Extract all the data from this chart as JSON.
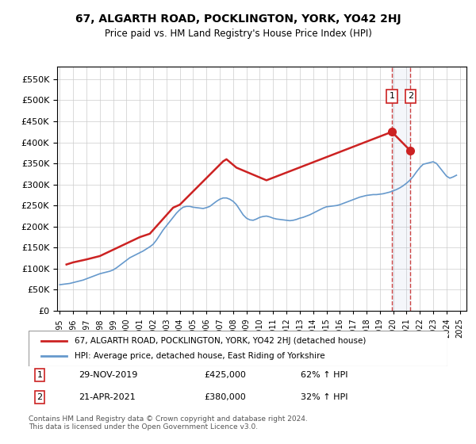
{
  "title": "67, ALGARTH ROAD, POCKLINGTON, YORK, YO42 2HJ",
  "subtitle": "Price paid vs. HM Land Registry's House Price Index (HPI)",
  "ylabel_ticks": [
    "£0",
    "£50K",
    "£100K",
    "£150K",
    "£200K",
    "£250K",
    "£300K",
    "£350K",
    "£400K",
    "£450K",
    "£500K",
    "£550K"
  ],
  "ytick_values": [
    0,
    50000,
    100000,
    150000,
    200000,
    250000,
    300000,
    350000,
    400000,
    450000,
    500000,
    550000
  ],
  "ylim": [
    0,
    580000
  ],
  "xlim_years": [
    1995,
    2025
  ],
  "xtick_years": [
    1995,
    1996,
    1997,
    1998,
    1999,
    2000,
    2001,
    2002,
    2003,
    2004,
    2005,
    2006,
    2007,
    2008,
    2009,
    2010,
    2011,
    2012,
    2013,
    2014,
    2015,
    2016,
    2017,
    2018,
    2019,
    2020,
    2021,
    2022,
    2023,
    2024,
    2025
  ],
  "hpi_color": "#6699cc",
  "price_color": "#cc2222",
  "transaction_color": "#cc2222",
  "dashed_line_color": "#cc4444",
  "transaction1_date": "29-NOV-2019",
  "transaction1_price": 425000,
  "transaction1_hpi_pct": "62%",
  "transaction2_date": "21-APR-2021",
  "transaction2_price": 380000,
  "transaction2_hpi_pct": "32%",
  "legend_label1": "67, ALGARTH ROAD, POCKLINGTON, YORK, YO42 2HJ (detached house)",
  "legend_label2": "HPI: Average price, detached house, East Riding of Yorkshire",
  "footer": "Contains HM Land Registry data © Crown copyright and database right 2024.\nThis data is licensed under the Open Government Licence v3.0.",
  "background_color": "#ffffff",
  "grid_color": "#cccccc",
  "hpi_years": [
    1995.0,
    1995.25,
    1995.5,
    1995.75,
    1996.0,
    1996.25,
    1996.5,
    1996.75,
    1997.0,
    1997.25,
    1997.5,
    1997.75,
    1998.0,
    1998.25,
    1998.5,
    1998.75,
    1999.0,
    1999.25,
    1999.5,
    1999.75,
    2000.0,
    2000.25,
    2000.5,
    2000.75,
    2001.0,
    2001.25,
    2001.5,
    2001.75,
    2002.0,
    2002.25,
    2002.5,
    2002.75,
    2003.0,
    2003.25,
    2003.5,
    2003.75,
    2004.0,
    2004.25,
    2004.5,
    2004.75,
    2005.0,
    2005.25,
    2005.5,
    2005.75,
    2006.0,
    2006.25,
    2006.5,
    2006.75,
    2007.0,
    2007.25,
    2007.5,
    2007.75,
    2008.0,
    2008.25,
    2008.5,
    2008.75,
    2009.0,
    2009.25,
    2009.5,
    2009.75,
    2010.0,
    2010.25,
    2010.5,
    2010.75,
    2011.0,
    2011.25,
    2011.5,
    2011.75,
    2012.0,
    2012.25,
    2012.5,
    2012.75,
    2013.0,
    2013.25,
    2013.5,
    2013.75,
    2014.0,
    2014.25,
    2014.5,
    2014.75,
    2015.0,
    2015.25,
    2015.5,
    2015.75,
    2016.0,
    2016.25,
    2016.5,
    2016.75,
    2017.0,
    2017.25,
    2017.5,
    2017.75,
    2018.0,
    2018.25,
    2018.5,
    2018.75,
    2019.0,
    2019.25,
    2019.5,
    2019.75,
    2020.0,
    2020.25,
    2020.5,
    2020.75,
    2021.0,
    2021.25,
    2021.5,
    2021.75,
    2022.0,
    2022.25,
    2022.5,
    2022.75,
    2023.0,
    2023.25,
    2023.5,
    2023.75,
    2024.0,
    2024.25,
    2024.5,
    2024.75
  ],
  "hpi_values": [
    62000,
    63000,
    64000,
    65000,
    67000,
    69000,
    71000,
    73000,
    76000,
    79000,
    82000,
    85000,
    88000,
    90000,
    92000,
    94000,
    97000,
    102000,
    108000,
    114000,
    120000,
    126000,
    130000,
    134000,
    138000,
    142000,
    147000,
    152000,
    158000,
    168000,
    180000,
    192000,
    202000,
    212000,
    222000,
    232000,
    240000,
    246000,
    248000,
    248000,
    246000,
    245000,
    244000,
    243000,
    245000,
    248000,
    254000,
    260000,
    265000,
    268000,
    268000,
    265000,
    260000,
    252000,
    240000,
    228000,
    220000,
    216000,
    215000,
    218000,
    222000,
    224000,
    225000,
    223000,
    220000,
    218000,
    217000,
    216000,
    215000,
    214000,
    215000,
    217000,
    220000,
    222000,
    225000,
    228000,
    232000,
    236000,
    240000,
    244000,
    247000,
    248000,
    249000,
    250000,
    252000,
    255000,
    258000,
    261000,
    264000,
    267000,
    270000,
    272000,
    274000,
    275000,
    276000,
    276000,
    277000,
    278000,
    280000,
    282000,
    285000,
    288000,
    292000,
    297000,
    303000,
    310000,
    319000,
    330000,
    340000,
    348000,
    350000,
    352000,
    354000,
    350000,
    340000,
    330000,
    320000,
    315000,
    318000,
    322000
  ],
  "price_years": [
    1995.5,
    1996.0,
    1997.0,
    1998.0,
    1999.0,
    2000.0,
    2001.0,
    2001.75,
    2003.5,
    2004.0,
    2007.25,
    2007.5,
    2008.25,
    2010.5,
    2019.9,
    2021.3
  ],
  "price_values": [
    110000,
    115000,
    122000,
    130000,
    145000,
    160000,
    175000,
    183000,
    245000,
    252000,
    355000,
    360000,
    340000,
    310000,
    425000,
    380000
  ]
}
